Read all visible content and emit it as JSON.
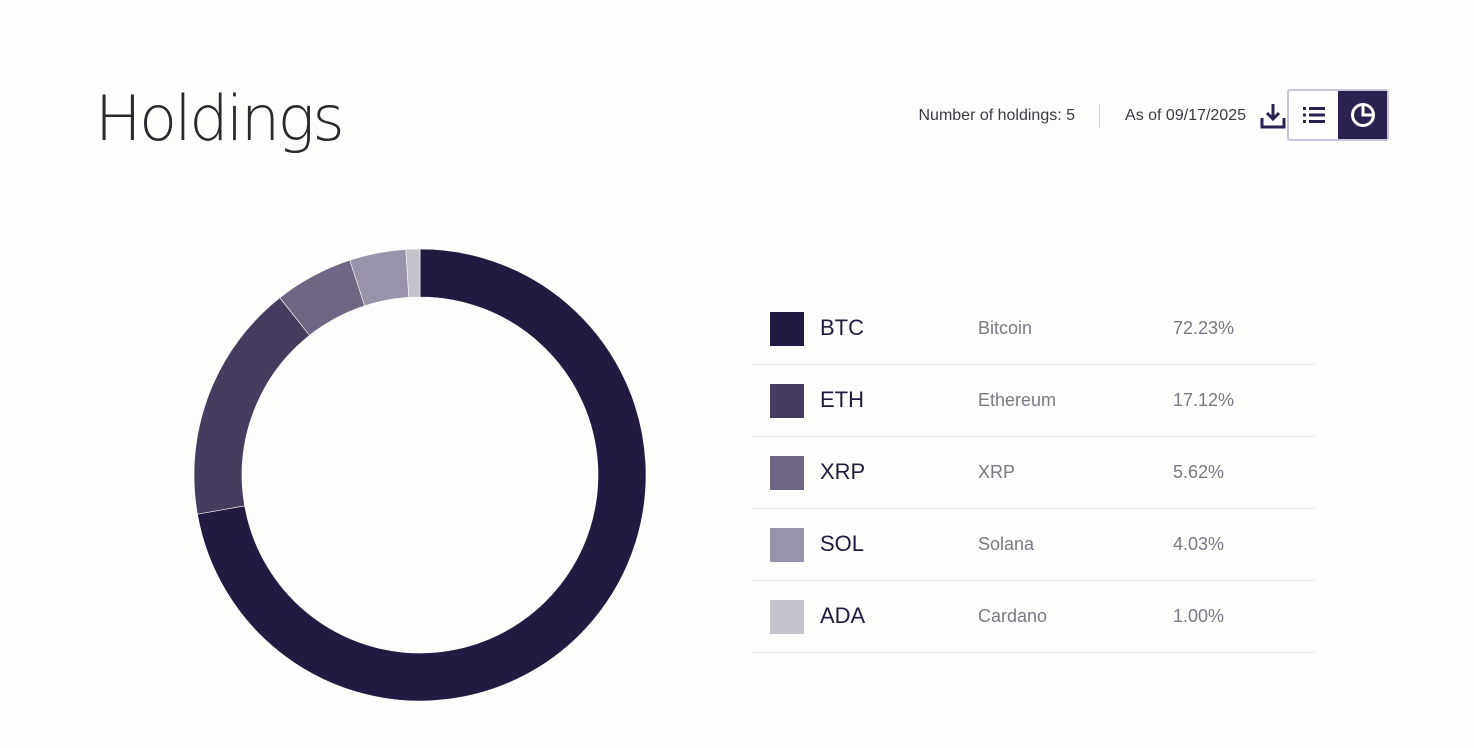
{
  "header": {
    "title": "Holdings",
    "holdings_count": "Number of holdings: 5",
    "as_of": "As of 09/17/2025",
    "download_icon": "download-icon",
    "view_toggle": {
      "list_icon": "list-view-icon",
      "chart_icon": "pie-chart-icon",
      "active": "chart"
    }
  },
  "legend": [
    {
      "ticker": "BTC",
      "name": "Bitcoin",
      "pct": "72.23%",
      "color": "#221a40"
    },
    {
      "ticker": "ETH",
      "name": "Ethereum",
      "pct": "17.12%",
      "color": "#463c60"
    },
    {
      "ticker": "XRP",
      "name": "XRP",
      "pct": "5.62%",
      "color": "#6e6684"
    },
    {
      "ticker": "SOL",
      "name": "Solana",
      "pct": "4.03%",
      "color": "#9893a8"
    },
    {
      "ticker": "ADA",
      "name": "Cardano",
      "pct": "1.00%",
      "color": "#c4c2ca"
    }
  ],
  "chart_data": {
    "type": "pie",
    "categories": [
      "BTC",
      "ETH",
      "XRP",
      "SOL",
      "ADA"
    ],
    "values": [
      72.23,
      17.12,
      5.62,
      4.03,
      1.0
    ],
    "colors": [
      "#221a40",
      "#463c60",
      "#6e6684",
      "#9893a8",
      "#c4c2ca"
    ],
    "donut": true,
    "title": "",
    "legend_placement": "right"
  }
}
